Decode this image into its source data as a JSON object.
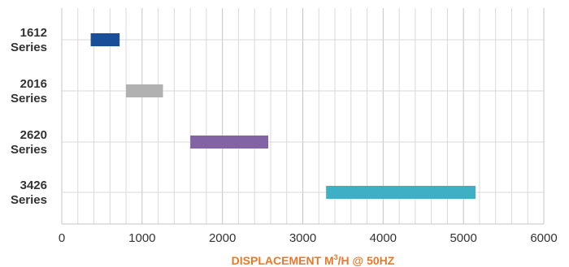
{
  "chart_data": {
    "type": "bar",
    "orientation": "horizontal-range",
    "categories": [
      "1612 Series",
      "2016 Series",
      "2620 Series",
      "3426 Series"
    ],
    "category_lines": [
      [
        "1612",
        "Series"
      ],
      [
        "2016",
        "Series"
      ],
      [
        "2620",
        "Series"
      ],
      [
        "3426",
        "Series"
      ]
    ],
    "ranges": [
      {
        "start": 360,
        "end": 720
      },
      {
        "start": 800,
        "end": 1260
      },
      {
        "start": 1600,
        "end": 2570
      },
      {
        "start": 3290,
        "end": 5150
      }
    ],
    "colors": [
      "#1a4e96",
      "#b1b1b1",
      "#8263a5",
      "#3fafc6"
    ],
    "xlim": [
      0,
      6000
    ],
    "xticks": [
      0,
      1000,
      2000,
      3000,
      4000,
      5000,
      6000
    ],
    "minor_step": 200,
    "grid": true,
    "xlabel_parts": {
      "before": "DISPLACEMENT M",
      "sup": "3",
      "after": "/H @ 50HZ"
    }
  }
}
